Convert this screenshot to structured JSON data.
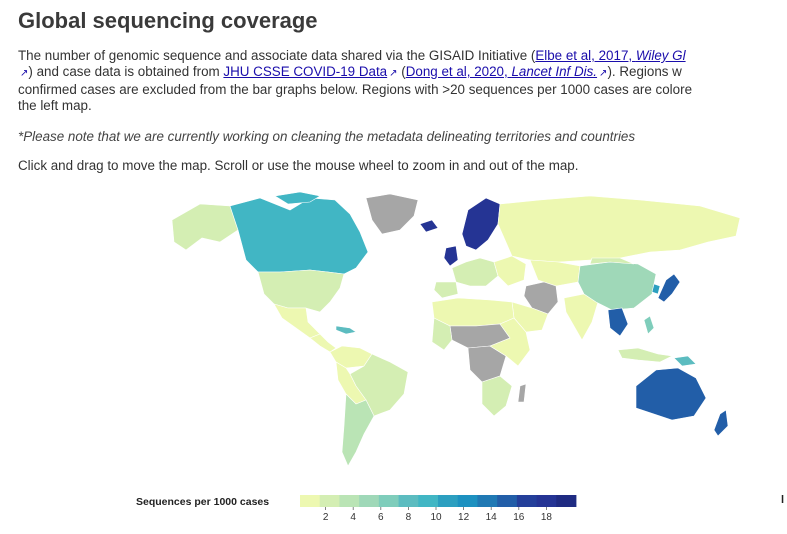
{
  "page": {
    "title": "Global sequencing coverage",
    "intro": {
      "line1_pre": "The number of genomic sequence and associate data shared via the GISAID Initiative (",
      "link_elbe": "Elbe et al, 2017, ",
      "link_elbe_journal": "Wiley Gl",
      "line2_ext": "↗",
      "line2_a": ") and case data is obtained from ",
      "link_jhu": "JHU CSSE COVID-19 Data",
      "line2_b": " (",
      "link_dong": "Dong et al, 2020, ",
      "link_dong_journal": "Lancet Inf Dis.",
      "line2_c": "). Regions w",
      "line3": "confirmed cases are excluded from the bar graphs below. Regions with >20 sequences per 1000 cases are colore",
      "line4": "the left map."
    },
    "note": "*Please note that we are currently working on cleaning the metadata delineating territories and countries",
    "instructions": "Click and drag to move the map. Scroll or use the mouse wheel to zoom in and out of the map."
  },
  "legend": {
    "title": "Sequences per 1000 cases",
    "ticks": [
      "2",
      "4",
      "6",
      "8",
      "10",
      "12",
      "14",
      "16",
      "18"
    ],
    "colors": [
      "#edf8b1",
      "#d4eeb3",
      "#bae4b5",
      "#9fd8b8",
      "#7fcdbb",
      "#5cbcc0",
      "#41b6c4",
      "#2c9fc0",
      "#1d91c0",
      "#2079b4",
      "#225ea8",
      "#243f9a",
      "#253494",
      "#1f2b82"
    ]
  },
  "map": {
    "no_data_color": "#a6a6a6",
    "ocean_color": "#ffffff",
    "border_color": "#ffffff"
  },
  "side_hint": "l"
}
